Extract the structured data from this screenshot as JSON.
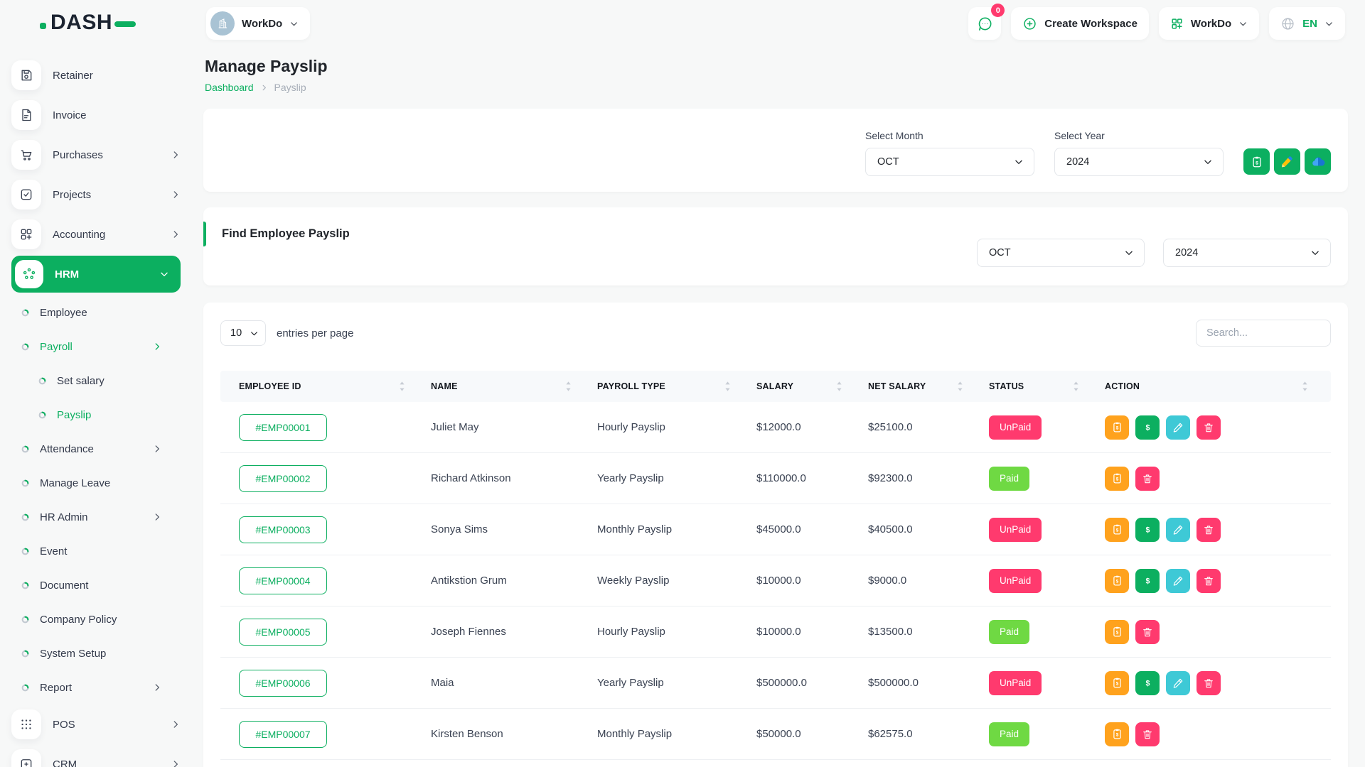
{
  "brand": {
    "name": "DASH"
  },
  "topbar": {
    "workspace_switcher": {
      "label": "WorkDo"
    },
    "messages": {
      "badge_count": "0"
    },
    "create_workspace": {
      "label": "Create Workspace"
    },
    "workspace_menu": {
      "label": "WorkDo"
    },
    "language": {
      "code": "EN"
    }
  },
  "sidebar": {
    "items": [
      {
        "label": "Retainer",
        "icon": "floppy-icon",
        "has_submenu": false
      },
      {
        "label": "Invoice",
        "icon": "invoice-icon",
        "has_submenu": false
      },
      {
        "label": "Purchases",
        "icon": "cart-icon",
        "has_submenu": true
      },
      {
        "label": "Projects",
        "icon": "check-square-icon",
        "has_submenu": true
      },
      {
        "label": "Accounting",
        "icon": "grid-plus-icon",
        "has_submenu": true
      },
      {
        "label": "HRM",
        "icon": "hrm-icon",
        "has_submenu": true,
        "active": true,
        "expanded": true
      }
    ],
    "hrm_children": [
      {
        "label": "Employee",
        "level": 1,
        "active": false,
        "has_submenu": false
      },
      {
        "label": "Payroll",
        "level": 1,
        "active": true,
        "has_submenu": true
      },
      {
        "label": "Set salary",
        "level": 2,
        "active": false,
        "has_submenu": false
      },
      {
        "label": "Payslip",
        "level": 2,
        "active": true,
        "has_submenu": false
      },
      {
        "label": "Attendance",
        "level": 1,
        "active": false,
        "has_submenu": true
      },
      {
        "label": "Manage Leave",
        "level": 1,
        "active": false,
        "has_submenu": false
      },
      {
        "label": "HR Admin",
        "level": 1,
        "active": false,
        "has_submenu": true
      },
      {
        "label": "Event",
        "level": 1,
        "active": false,
        "has_submenu": false
      },
      {
        "label": "Document",
        "level": 1,
        "active": false,
        "has_submenu": false
      },
      {
        "label": "Company Policy",
        "level": 1,
        "active": false,
        "has_submenu": false
      },
      {
        "label": "System Setup",
        "level": 1,
        "active": false,
        "has_submenu": false
      },
      {
        "label": "Report",
        "level": 1,
        "active": false,
        "has_submenu": true
      }
    ],
    "bottom_items": [
      {
        "label": "POS",
        "icon": "pos-icon",
        "has_submenu": true
      },
      {
        "label": "CRM",
        "icon": "crm-icon",
        "has_submenu": true
      }
    ]
  },
  "page": {
    "title": "Manage Payslip",
    "breadcrumb": {
      "link": "Dashboard",
      "current": "Payslip"
    }
  },
  "filter_card": {
    "month_label": "Select Month",
    "month_value": "OCT",
    "year_label": "Select Year",
    "year_value": "2024",
    "action_icons": [
      "payslip-icon",
      "pencil-colored-icon",
      "cloud-icon"
    ]
  },
  "find_card": {
    "title": "Find Employee Payslip",
    "month_value": "OCT",
    "year_value": "2024"
  },
  "table_card": {
    "entries_per_page": "10",
    "entries_label": "entries per page",
    "search_placeholder": "Search...",
    "columns": [
      "EMPLOYEE ID",
      "NAME",
      "PAYROLL TYPE",
      "SALARY",
      "NET SALARY",
      "STATUS",
      "ACTION"
    ],
    "rows": [
      {
        "employee_id": "#EMP00001",
        "name": "Juliet May",
        "payroll_type": "Hourly Payslip",
        "salary": "$12000.0",
        "net_salary": "$25100.0",
        "status": "UnPaid",
        "actions": [
          "payslip",
          "money",
          "edit",
          "trash"
        ]
      },
      {
        "employee_id": "#EMP00002",
        "name": "Richard Atkinson",
        "payroll_type": "Yearly Payslip",
        "salary": "$110000.0",
        "net_salary": "$92300.0",
        "status": "Paid",
        "actions": [
          "payslip",
          "trash"
        ]
      },
      {
        "employee_id": "#EMP00003",
        "name": "Sonya Sims",
        "payroll_type": "Monthly Payslip",
        "salary": "$45000.0",
        "net_salary": "$40500.0",
        "status": "UnPaid",
        "actions": [
          "payslip",
          "money",
          "edit",
          "trash"
        ]
      },
      {
        "employee_id": "#EMP00004",
        "name": "Antikstion Grum",
        "payroll_type": "Weekly Payslip",
        "salary": "$10000.0",
        "net_salary": "$9000.0",
        "status": "UnPaid",
        "actions": [
          "payslip",
          "money",
          "edit",
          "trash"
        ]
      },
      {
        "employee_id": "#EMP00005",
        "name": "Joseph Fiennes",
        "payroll_type": "Hourly Payslip",
        "salary": "$10000.0",
        "net_salary": "$13500.0",
        "status": "Paid",
        "actions": [
          "payslip",
          "trash"
        ]
      },
      {
        "employee_id": "#EMP00006",
        "name": "Maia",
        "payroll_type": "Yearly Payslip",
        "salary": "$500000.0",
        "net_salary": "$500000.0",
        "status": "UnPaid",
        "actions": [
          "payslip",
          "money",
          "edit",
          "trash"
        ]
      },
      {
        "employee_id": "#EMP00007",
        "name": "Kirsten Benson",
        "payroll_type": "Monthly Payslip",
        "salary": "$50000.0",
        "net_salary": "$62575.0",
        "status": "Paid",
        "actions": [
          "payslip",
          "trash"
        ]
      }
    ]
  },
  "colors": {
    "primary_green": "#0CAF60",
    "paid_badge": "#6FD943",
    "unpaid_badge": "#FF3A6E",
    "action_orange": "#FFA21D",
    "action_cyan": "#3EC9D6",
    "action_pink": "#FF3A6E"
  }
}
